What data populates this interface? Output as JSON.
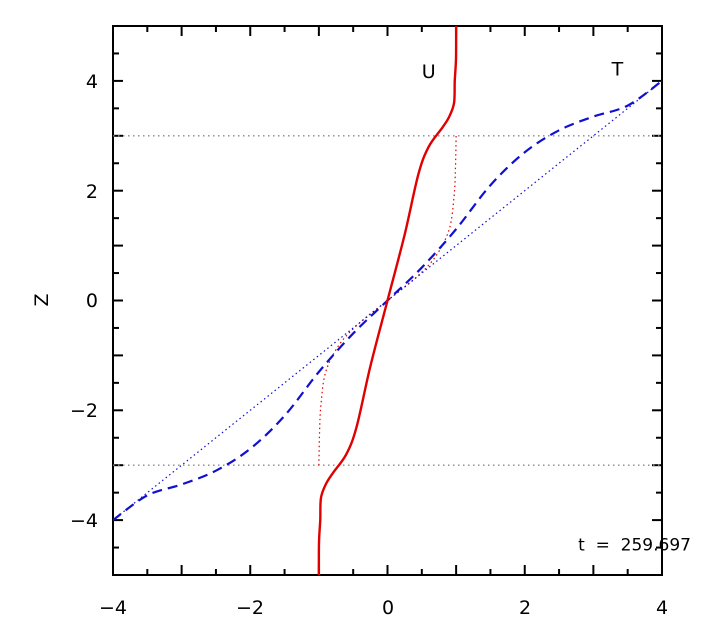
{
  "chart_data": {
    "type": "line",
    "title": "",
    "xlabel": "",
    "ylabel": "Z",
    "xlim": [
      -4,
      4
    ],
    "ylim": [
      -5,
      5
    ],
    "x_ticks": [
      "−4",
      "−2",
      "0",
      "2",
      "4"
    ],
    "y_ticks": [
      "−4",
      "−2",
      "0",
      "2",
      "4"
    ],
    "grid": false,
    "reference_lines": [
      {
        "name": "upper-dotted",
        "y": 3,
        "color": "#888888",
        "style": "dotted"
      },
      {
        "name": "lower-dotted",
        "y": -3,
        "color": "#888888",
        "style": "dotted"
      }
    ],
    "series": [
      {
        "name": "U",
        "label": "U",
        "color": "#e00000",
        "style": "solid",
        "points": [
          [
            -1.0,
            -5.0
          ],
          [
            -0.998,
            -4.4
          ],
          [
            -0.98,
            -4.0
          ],
          [
            -0.97,
            -3.6
          ],
          [
            -0.9,
            -3.35
          ],
          [
            -0.8,
            -3.15
          ],
          [
            -0.6,
            -2.8
          ],
          [
            -0.45,
            -2.3
          ],
          [
            -0.25,
            -1.2
          ],
          [
            0.0,
            0.0
          ],
          [
            0.25,
            1.2
          ],
          [
            0.45,
            2.3
          ],
          [
            0.6,
            2.8
          ],
          [
            0.8,
            3.15
          ],
          [
            0.9,
            3.35
          ],
          [
            0.97,
            3.6
          ],
          [
            0.98,
            4.0
          ],
          [
            0.998,
            4.4
          ],
          [
            1.0,
            5.0
          ]
        ]
      },
      {
        "name": "U-initial",
        "label": "",
        "color": "#e00000",
        "style": "dotted",
        "points": [
          [
            -1.0,
            -3.0
          ],
          [
            -0.99,
            -2.4
          ],
          [
            -0.97,
            -1.9
          ],
          [
            -0.9,
            -1.3
          ],
          [
            -0.7,
            -0.8
          ],
          [
            -0.4,
            -0.4
          ],
          [
            0.0,
            0.0
          ],
          [
            0.4,
            0.4
          ],
          [
            0.7,
            0.8
          ],
          [
            0.9,
            1.3
          ],
          [
            0.97,
            1.9
          ],
          [
            0.99,
            2.4
          ],
          [
            1.0,
            3.0
          ]
        ]
      },
      {
        "name": "T",
        "label": "T",
        "color": "#1010d0",
        "style": "dashed",
        "points": [
          [
            -4.0,
            -4.0
          ],
          [
            -3.5,
            -3.55
          ],
          [
            -3.0,
            -3.35
          ],
          [
            -2.5,
            -3.1
          ],
          [
            -2.0,
            -2.7
          ],
          [
            -1.5,
            -2.1
          ],
          [
            -1.0,
            -1.3
          ],
          [
            -0.5,
            -0.6
          ],
          [
            0.0,
            0.0
          ],
          [
            0.5,
            0.6
          ],
          [
            1.0,
            1.3
          ],
          [
            1.5,
            2.1
          ],
          [
            2.0,
            2.7
          ],
          [
            2.5,
            3.1
          ],
          [
            3.0,
            3.35
          ],
          [
            3.5,
            3.55
          ],
          [
            4.0,
            4.0
          ]
        ]
      },
      {
        "name": "T-initial",
        "label": "",
        "color": "#1010d0",
        "style": "dotted",
        "points": [
          [
            -4.0,
            -4.0
          ],
          [
            4.0,
            4.0
          ]
        ]
      }
    ],
    "annotation": {
      "text": "t  =  259.697",
      "x": 3.6,
      "y": -4.55
    },
    "series_label_positions": {
      "U": {
        "x": 0.6,
        "y": 4.05
      },
      "T": {
        "x": 3.35,
        "y": 4.1
      }
    }
  }
}
